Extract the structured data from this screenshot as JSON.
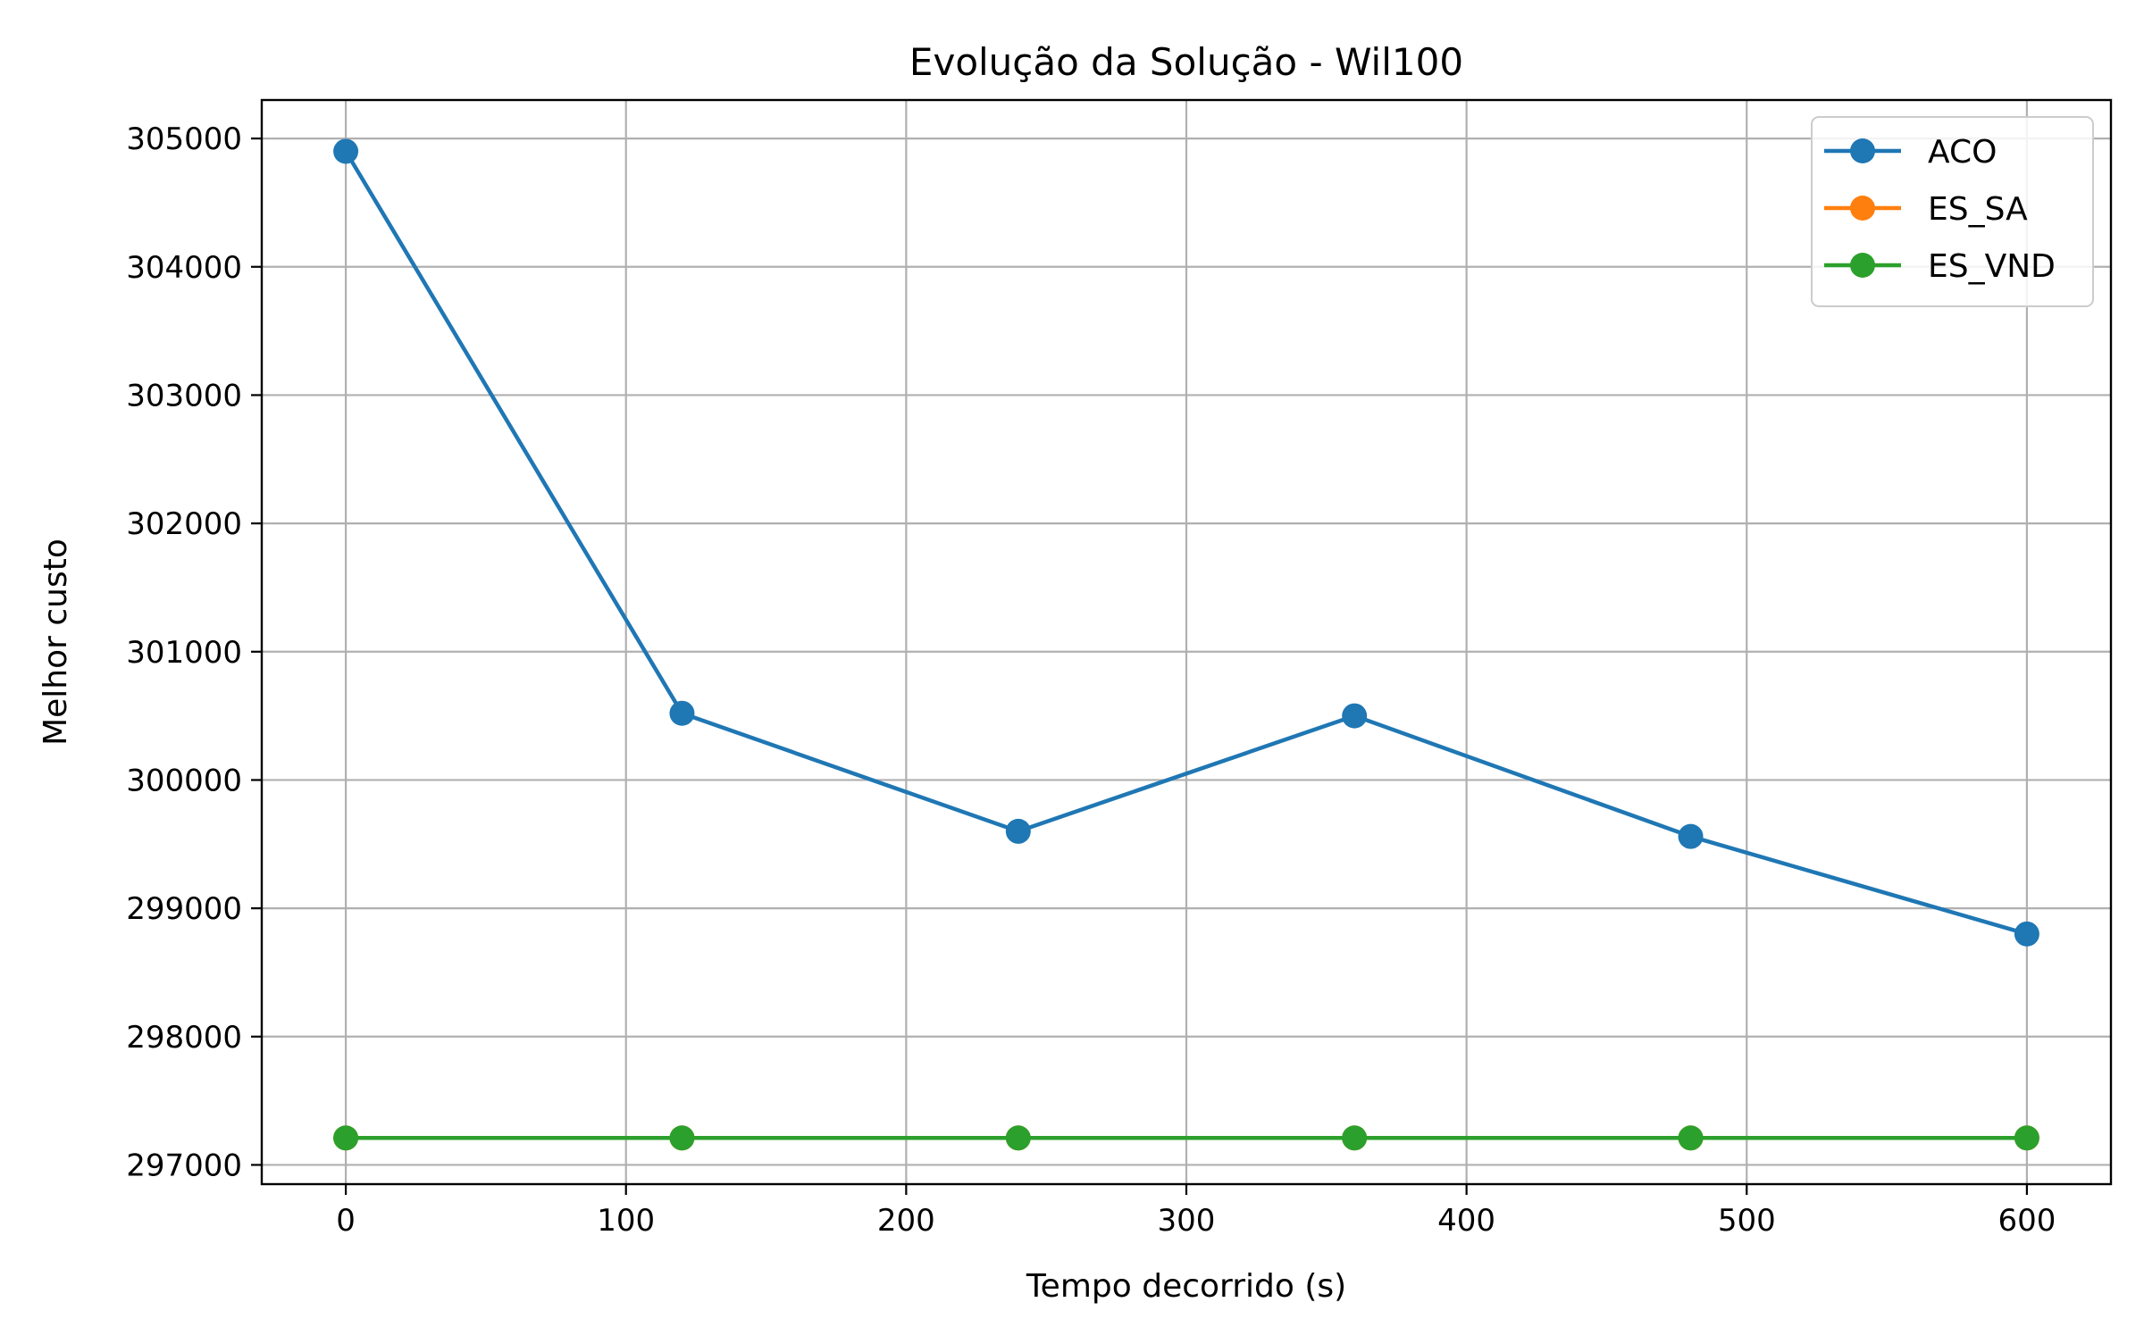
{
  "chart_data": {
    "type": "line",
    "title": "Evolução da Solução - Wil100",
    "xlabel": "Tempo decorrido (s)",
    "ylabel": "Melhor custo",
    "xlim": [
      -30,
      630
    ],
    "ylim": [
      296850,
      305300
    ],
    "xticks": [
      0,
      100,
      200,
      300,
      400,
      500,
      600
    ],
    "yticks": [
      297000,
      298000,
      299000,
      300000,
      301000,
      302000,
      303000,
      304000,
      305000
    ],
    "grid": true,
    "legend_position": "top-right",
    "x": [
      0,
      120,
      240,
      360,
      480,
      600
    ],
    "series": [
      {
        "name": "ACO",
        "color": "#1f77b4",
        "values": [
          304900,
          300520,
          299600,
          300500,
          299560,
          298800
        ]
      },
      {
        "name": "ES_SA",
        "color": "#ff7f0e",
        "values": [
          297210,
          297210,
          297210,
          297210,
          297210,
          297210
        ]
      },
      {
        "name": "ES_VND",
        "color": "#2ca02c",
        "values": [
          297210,
          297210,
          297210,
          297210,
          297210,
          297210
        ]
      }
    ]
  }
}
